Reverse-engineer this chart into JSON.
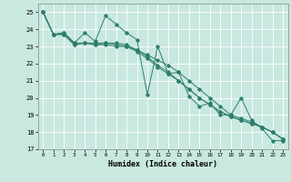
{
  "title": "",
  "xlabel": "Humidex (Indice chaleur)",
  "ylabel": "",
  "xlim": [
    -0.5,
    23.5
  ],
  "ylim": [
    17,
    25.5
  ],
  "yticks": [
    17,
    18,
    19,
    20,
    21,
    22,
    23,
    24,
    25
  ],
  "xticks": [
    0,
    1,
    2,
    3,
    4,
    5,
    6,
    7,
    8,
    9,
    10,
    11,
    12,
    13,
    14,
    15,
    16,
    17,
    18,
    19,
    20,
    21,
    22,
    23
  ],
  "bg_color": "#c8e8e0",
  "grid_color": "#ffffff",
  "line_color": "#2e7d6e",
  "series": [
    [
      25.0,
      23.7,
      23.8,
      23.2,
      23.8,
      23.3,
      24.8,
      24.3,
      23.8,
      23.4,
      20.2,
      23.0,
      21.4,
      21.5,
      20.1,
      19.5,
      19.7,
      19.0,
      19.0,
      20.0,
      18.7,
      18.2,
      17.5,
      17.5
    ],
    [
      25.0,
      23.7,
      23.7,
      23.1,
      23.2,
      23.1,
      23.2,
      23.2,
      23.1,
      22.8,
      22.5,
      22.2,
      21.9,
      21.5,
      21.0,
      20.5,
      20.0,
      19.5,
      19.0,
      18.8,
      18.6,
      18.3,
      18.0,
      17.6
    ],
    [
      25.0,
      23.7,
      23.7,
      23.1,
      23.2,
      23.1,
      23.1,
      23.0,
      23.0,
      22.7,
      22.3,
      21.8,
      21.4,
      21.0,
      20.5,
      20.0,
      19.6,
      19.2,
      18.9,
      18.7,
      18.5,
      18.3,
      18.0,
      17.6
    ],
    [
      25.0,
      23.7,
      23.8,
      23.2,
      23.2,
      23.2,
      23.2,
      23.1,
      23.0,
      22.8,
      22.4,
      21.9,
      21.5,
      21.0,
      20.5,
      20.0,
      19.6,
      19.2,
      18.9,
      18.7,
      18.5,
      18.3,
      18.0,
      17.6
    ]
  ]
}
